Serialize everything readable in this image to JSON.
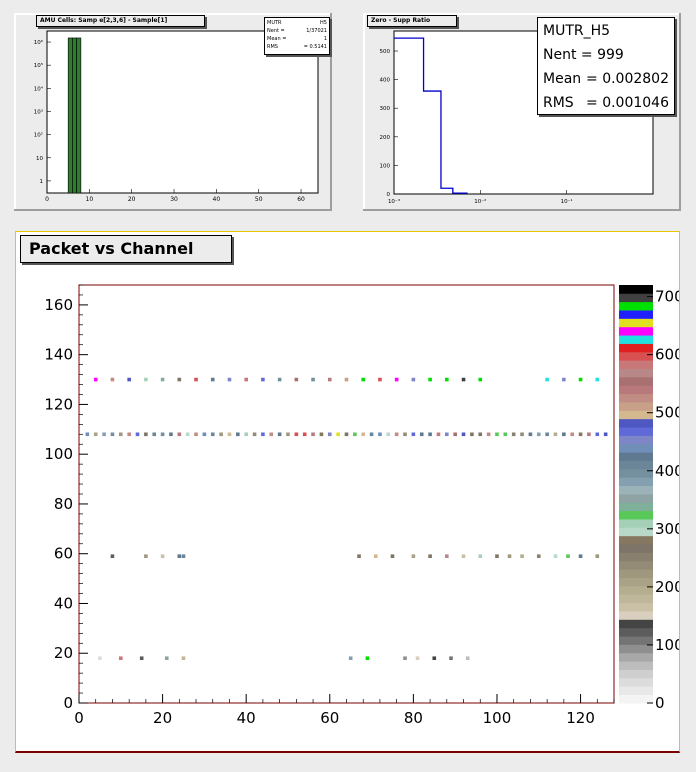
{
  "colors": {
    "canvas": "#ececec",
    "frame_gold": "#e6c800",
    "frame_dark": "#7a0000",
    "hist_line": "#0000cc",
    "bar_fill": "#2e7d32"
  },
  "pad1": {
    "title": "AMU Cells: Samp e[2,3,6] - Sample[1]",
    "stats": [
      {
        "label": "MUTR",
        "value": "H5"
      },
      {
        "label": "Nent =",
        "value": "1/37021"
      },
      {
        "label": "Mean =",
        "value": "1"
      },
      {
        "label": "RMS",
        "value": "= 0.5141"
      }
    ]
  },
  "pad2": {
    "title": "Zero - Supp Ratio",
    "stats": [
      {
        "label": "MUTR_H5",
        "value": ""
      },
      {
        "label": "Nent = 999",
        "value": ""
      },
      {
        "label": "Mean",
        "value": "= 0.002802"
      },
      {
        "label": "RMS",
        "value": "= 0.001046"
      }
    ]
  },
  "pad3": {
    "title": "Packet vs Channel"
  },
  "chart_data": [
    {
      "type": "bar",
      "title": "AMU Cells: Samp e[2,3,6] - Sample[1]",
      "log_y": true,
      "x_ticks": [
        "0",
        "10",
        "20",
        "30",
        "40",
        "50",
        "60"
      ],
      "y_ticks": [
        "1",
        "10",
        "10²",
        "10³",
        "10⁴",
        "10⁵",
        "10⁶"
      ],
      "xlim": [
        0,
        64
      ],
      "ylim": [
        0.3,
        3000000
      ],
      "x": [
        5.5,
        6.5,
        7.5
      ],
      "values": [
        1500000,
        1500000,
        1500000
      ]
    },
    {
      "type": "line",
      "title": "Zero - Supp Ratio",
      "log_x": true,
      "x_ticks": [
        "10⁻³",
        "10⁻²",
        "10⁻¹"
      ],
      "y_ticks": [
        "0",
        "100",
        "200",
        "300",
        "400",
        "500"
      ],
      "ylim": [
        0,
        570
      ],
      "steps": [
        [
          0.001,
          0.0022,
          545
        ],
        [
          0.0022,
          0.0035,
          360
        ],
        [
          0.0035,
          0.0048,
          20
        ],
        [
          0.0048,
          0.007,
          3
        ]
      ]
    },
    {
      "type": "heatmap",
      "title": "Packet vs Channel",
      "xlim": [
        0,
        128
      ],
      "ylim": [
        0,
        168
      ],
      "x_ticks": [
        "0",
        "20",
        "40",
        "60",
        "80",
        "100",
        "120"
      ],
      "y_ticks": [
        "0",
        "20",
        "40",
        "60",
        "80",
        "100",
        "120",
        "140",
        "160"
      ],
      "z_ticks": [
        "0",
        "100",
        "200",
        "300",
        "400",
        "500",
        "600",
        "700"
      ],
      "zlim": [
        0,
        720
      ],
      "rows": [
        {
          "y": 18,
          "points": [
            [
              5,
              30
            ],
            [
              10,
              580
            ],
            [
              15,
              120
            ],
            [
              21,
              350
            ],
            [
              25,
              180
            ],
            [
              65,
              380
            ],
            [
              69,
              690
            ],
            [
              78,
              90
            ],
            [
              81,
              150
            ],
            [
              85,
              130
            ],
            [
              89,
              110
            ],
            [
              93,
              60
            ]
          ]
        },
        {
          "y": 59,
          "points": [
            [
              8,
              120
            ],
            [
              16,
              220
            ],
            [
              20,
              160
            ],
            [
              24,
              420
            ],
            [
              25,
              410
            ],
            [
              67,
              270
            ],
            [
              71,
              490
            ],
            [
              75,
              260
            ],
            [
              80,
              210
            ],
            [
              84,
              270
            ],
            [
              88,
              570
            ],
            [
              92,
              160
            ],
            [
              96,
              310
            ],
            [
              100,
              260
            ],
            [
              103,
              230
            ],
            [
              106,
              200
            ],
            [
              110,
              250
            ],
            [
              114,
              300
            ],
            [
              117,
              320
            ],
            [
              120,
              420
            ],
            [
              124,
              230
            ]
          ]
        },
        {
          "y": 108,
          "points": [
            [
              2,
              440
            ],
            [
              4,
              210
            ],
            [
              6,
              380
            ],
            [
              8,
              400
            ],
            [
              10,
              230
            ],
            [
              12,
              520
            ],
            [
              14,
              470
            ],
            [
              16,
              260
            ],
            [
              18,
              410
            ],
            [
              20,
              390
            ],
            [
              22,
              430
            ],
            [
              24,
              540
            ],
            [
              26,
              300
            ],
            [
              28,
              520
            ],
            [
              30,
              440
            ],
            [
              32,
              410
            ],
            [
              34,
              230
            ],
            [
              36,
              500
            ],
            [
              38,
              430
            ],
            [
              40,
              310
            ],
            [
              42,
              240
            ],
            [
              44,
              470
            ],
            [
              46,
              530
            ],
            [
              48,
              420
            ],
            [
              50,
              220
            ],
            [
              52,
              600
            ],
            [
              54,
              600
            ],
            [
              56,
              540
            ],
            [
              58,
              280
            ],
            [
              60,
              460
            ],
            [
              62,
              660
            ],
            [
              64,
              270
            ],
            [
              66,
              320
            ],
            [
              68,
              490
            ],
            [
              70,
              410
            ],
            [
              72,
              440
            ],
            [
              74,
              300
            ],
            [
              76,
              520
            ],
            [
              78,
              240
            ],
            [
              80,
              470
            ],
            [
              82,
              430
            ],
            [
              84,
              420
            ],
            [
              86,
              580
            ],
            [
              88,
              460
            ],
            [
              90,
              550
            ],
            [
              92,
              480
            ],
            [
              94,
              270
            ],
            [
              96,
              260
            ],
            [
              98,
              530
            ],
            [
              100,
              330
            ],
            [
              102,
              320
            ],
            [
              104,
              250
            ],
            [
              106,
              240
            ],
            [
              108,
              420
            ],
            [
              110,
              380
            ],
            [
              112,
              410
            ],
            [
              114,
              200
            ],
            [
              116,
              430
            ],
            [
              118,
              520
            ],
            [
              120,
              280
            ],
            [
              122,
              540
            ],
            [
              124,
              470
            ],
            [
              126,
              480
            ]
          ]
        },
        {
          "y": 130,
          "points": [
            [
              4,
              640
            ],
            [
              8,
              530
            ],
            [
              12,
              480
            ],
            [
              16,
              310
            ],
            [
              20,
              340
            ],
            [
              24,
              270
            ],
            [
              28,
              600
            ],
            [
              32,
              430
            ],
            [
              36,
              460
            ],
            [
              40,
              580
            ],
            [
              44,
              470
            ],
            [
              48,
              390
            ],
            [
              52,
              550
            ],
            [
              56,
              400
            ],
            [
              60,
              540
            ],
            [
              64,
              510
            ],
            [
              68,
              680
            ],
            [
              72,
              600
            ],
            [
              76,
              640
            ],
            [
              80,
              460
            ],
            [
              84,
              690
            ],
            [
              88,
              680
            ],
            [
              92,
              700
            ],
            [
              96,
              690
            ],
            [
              112,
              620
            ],
            [
              116,
              460
            ],
            [
              120,
              690
            ],
            [
              124,
              620
            ]
          ]
        }
      ]
    }
  ]
}
